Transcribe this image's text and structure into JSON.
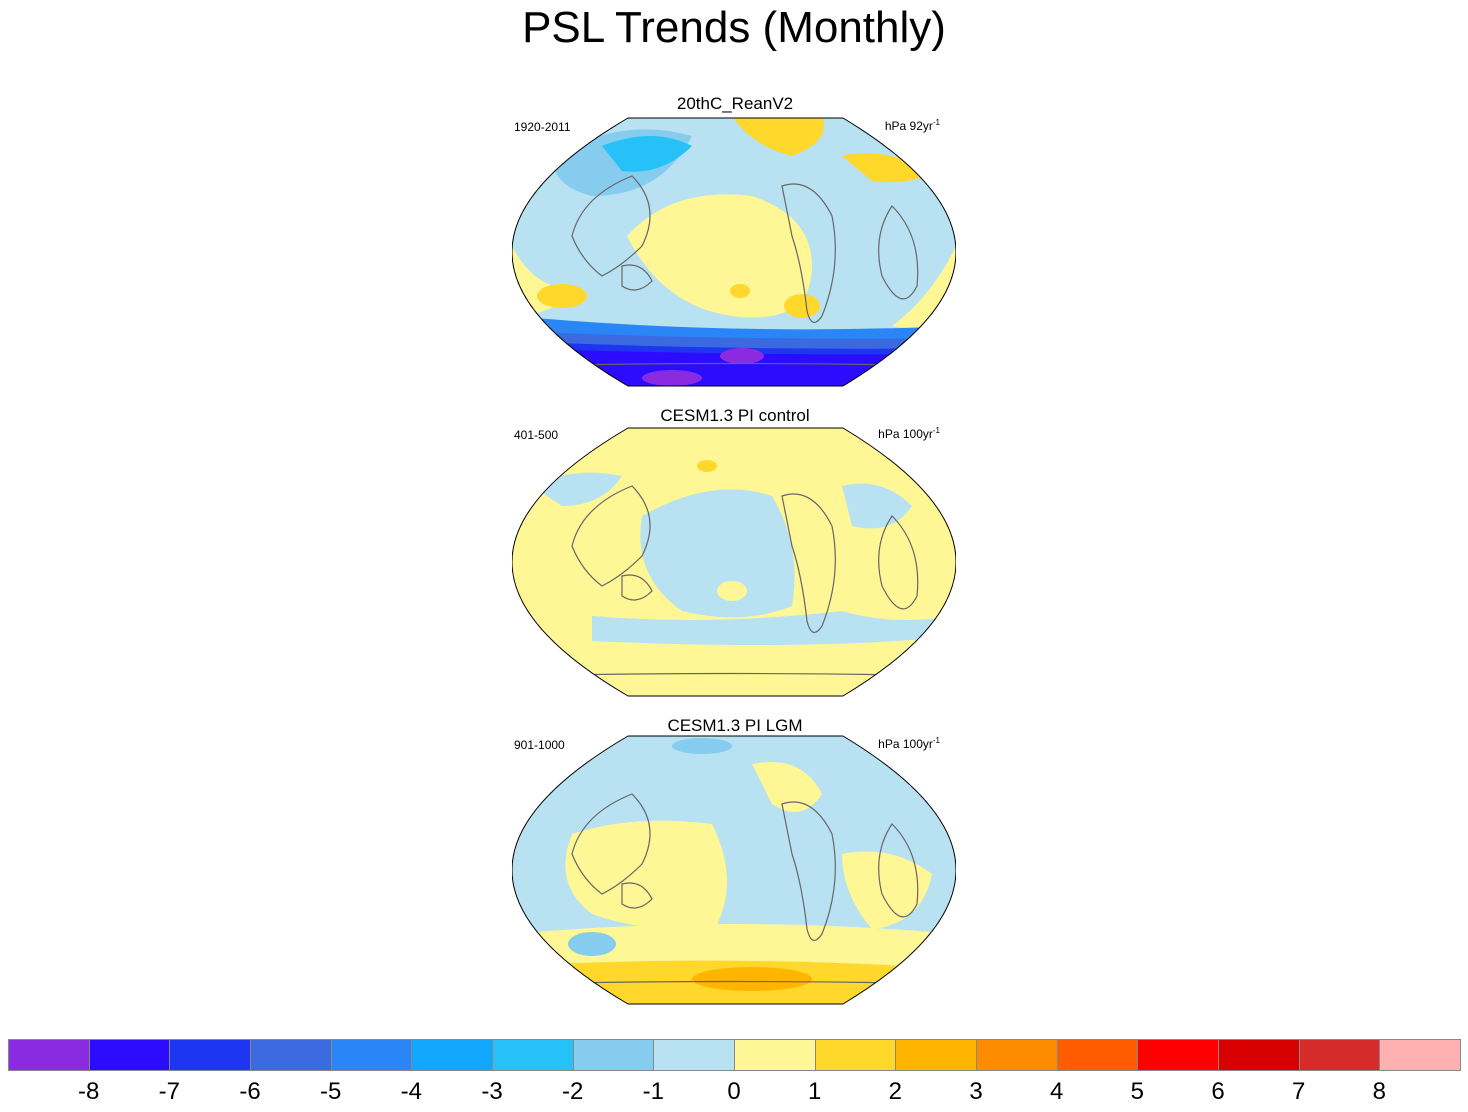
{
  "title": "PSL Trends (Monthly)",
  "panels": [
    {
      "title": "20thC_ReanV2",
      "period": "1920-2011",
      "units_base": "hPa 92yr",
      "units_exp": "-1"
    },
    {
      "title": "CESM1.3 PI control",
      "period": "401-500",
      "units_base": "hPa 100yr",
      "units_exp": "-1"
    },
    {
      "title": "CESM1.3 PI LGM",
      "period": "901-1000",
      "units_base": "hPa 100yr",
      "units_exp": "-1"
    }
  ],
  "colorbar": {
    "colors": [
      "#8a2be2",
      "#2b0cff",
      "#1f36f0",
      "#3b69e0",
      "#2a86f6",
      "#11a7ff",
      "#26c1f7",
      "#86ccee",
      "#b8e1f2",
      "#fff696",
      "#ffd82b",
      "#ffb400",
      "#ff8c00",
      "#ff5c00",
      "#ff0000",
      "#d80000",
      "#d52b2b",
      "#ffb0b0"
    ],
    "labels": [
      "-8",
      "-7",
      "-6",
      "-5",
      "-4",
      "-3",
      "-2",
      "-1",
      "0",
      "1",
      "2",
      "3",
      "4",
      "5",
      "6",
      "7",
      "8"
    ]
  }
}
